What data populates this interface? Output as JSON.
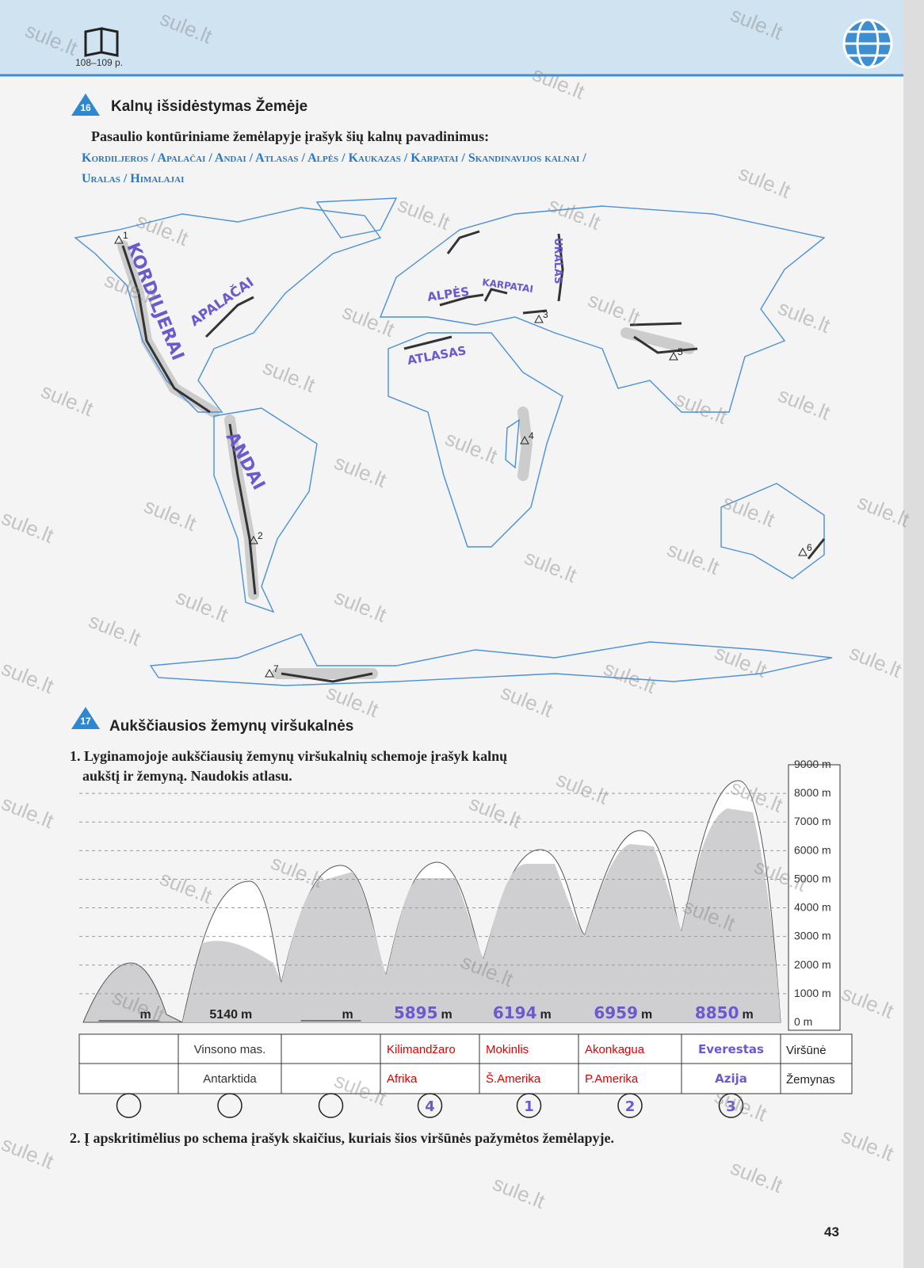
{
  "header": {
    "pages": "108–109 p.",
    "page_number": "43"
  },
  "watermark": "sule.lt",
  "task16": {
    "number": "16",
    "title": "Kalnų išsidėstymas Žemėje",
    "instruction": "Pasaulio kontūriniame žemėlapyje įrašyk šių kalnų pavadinimus:",
    "mountain_list": [
      "Kordiljeros / Apalačai / Andai / Atlasas / Alpės / Kaukazas / Karpatai / Skandinavijos kalnai /",
      "Uralas / Himalajai"
    ],
    "map_labels": [
      "KORDILJERAI",
      "APALAČAI",
      "ANDAI",
      "ALPĖS",
      "KARPATAI",
      "ATLASAS",
      "URALAS"
    ],
    "map_markers": [
      "1",
      "2",
      "3",
      "4",
      "5",
      "6",
      "7"
    ]
  },
  "task17": {
    "number": "17",
    "title": "Aukščiausios žemynų viršukalnės",
    "question1": [
      "1. Lyginamojoje aukščiausių žemynų viršukalnių schemoje įrašyk kalnų",
      "aukštį ir žemyną. Naudokis atlasu."
    ],
    "scale": [
      "9000 m",
      "8000 m",
      "7000 m",
      "6000 m",
      "5000 m",
      "4000 m",
      "3000 m",
      "2000 m",
      "1000 m",
      "0 m"
    ],
    "heights": [
      null,
      "5140",
      null,
      "5895",
      "6194",
      "6959",
      "8850"
    ],
    "height_unit": "m",
    "table": [
      {
        "header": "Viršūnė",
        "cells": [
          null,
          "Vinsono mas.",
          null,
          "Kilimandžaro",
          "Mokinlis",
          "Akonkagua",
          "Everestas"
        ]
      },
      {
        "header": "Žemynas",
        "cells": [
          null,
          "Antarktida",
          null,
          "Afrika",
          "Š.Amerika",
          "P.Amerika",
          "Azija"
        ]
      }
    ],
    "circles": [
      null,
      null,
      null,
      "4",
      "1",
      "2",
      "3"
    ],
    "question2": "2. Į apskritimėlius po schema įrašyk skaičius, kuriais šios viršūnės pažymėtos žemėlapyje."
  }
}
